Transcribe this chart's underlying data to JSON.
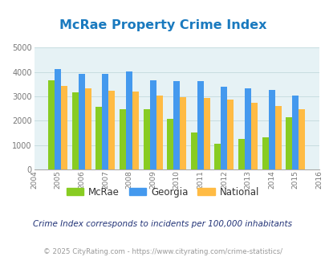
{
  "title": "McRae Property Crime Index",
  "title_color": "#1a7abf",
  "years": [
    2004,
    2005,
    2006,
    2007,
    2008,
    2009,
    2010,
    2011,
    2012,
    2013,
    2014,
    2015,
    2016
  ],
  "bar_years": [
    2005,
    2006,
    2007,
    2008,
    2009,
    2010,
    2011,
    2012,
    2013,
    2014,
    2015
  ],
  "mcrae": [
    3650,
    3170,
    2580,
    2490,
    2490,
    2080,
    1510,
    1050,
    1270,
    1320,
    2160
  ],
  "georgia": [
    4130,
    3920,
    3920,
    4030,
    3660,
    3640,
    3630,
    3390,
    3340,
    3280,
    3040
  ],
  "national": [
    3440,
    3340,
    3230,
    3210,
    3040,
    2960,
    2940,
    2880,
    2740,
    2600,
    2480
  ],
  "mcrae_color": "#88cc22",
  "georgia_color": "#4499ee",
  "national_color": "#ffbb44",
  "bg_color": "#e6f2f5",
  "ylim": [
    0,
    5000
  ],
  "yticks": [
    0,
    1000,
    2000,
    3000,
    4000,
    5000
  ],
  "bar_width": 0.27,
  "legend_labels": [
    "McRae",
    "Georgia",
    "National"
  ],
  "note": "Crime Index corresponds to incidents per 100,000 inhabitants",
  "note_color": "#223377",
  "footer": "© 2025 CityRating.com - https://www.cityrating.com/crime-statistics/",
  "footer_color": "#999999",
  "grid_color": "#c8dde0"
}
